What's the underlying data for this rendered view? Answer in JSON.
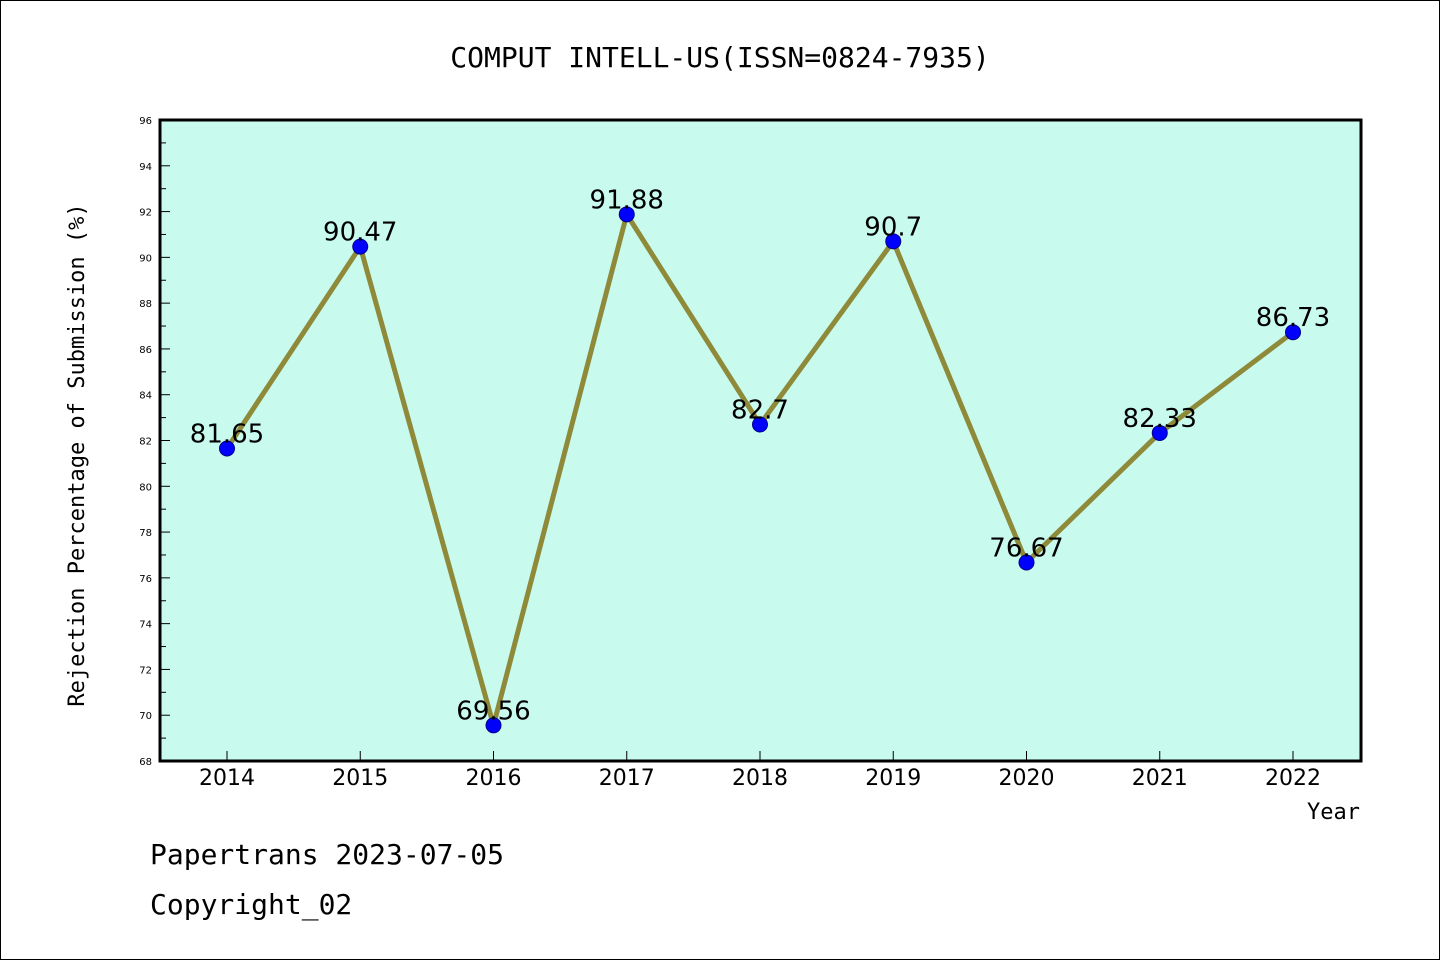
{
  "chart_data": {
    "type": "line",
    "title": "COMPUT INTELL-US(ISSN=0824-7935)",
    "xlabel": "Year",
    "ylabel": "Rejection Percentage of Submission (%)",
    "categories": [
      "2014",
      "2015",
      "2016",
      "2017",
      "2018",
      "2019",
      "2020",
      "2021",
      "2022"
    ],
    "series": [
      {
        "values": [
          81.65,
          90.47,
          69.56,
          91.88,
          82.7,
          90.7,
          76.67,
          82.33,
          86.73
        ],
        "labels": [
          "81.65",
          "90.47",
          "69.56",
          "91.88",
          "82.7",
          "90.7",
          "76.67",
          "82.33",
          "86.73"
        ]
      }
    ],
    "ylim": [
      68,
      96
    ],
    "yticks": [
      "68",
      "70",
      "72",
      "74",
      "76",
      "78",
      "80",
      "82",
      "84",
      "86",
      "88",
      "90",
      "92",
      "94",
      "96"
    ],
    "grid": false,
    "plot_background": "#c8fbee",
    "line_color": "#8e8a3a",
    "marker_color": "#0000ff"
  },
  "footer": {
    "line1": "Papertrans 2023-07-05",
    "line2": "Copyright_02"
  }
}
